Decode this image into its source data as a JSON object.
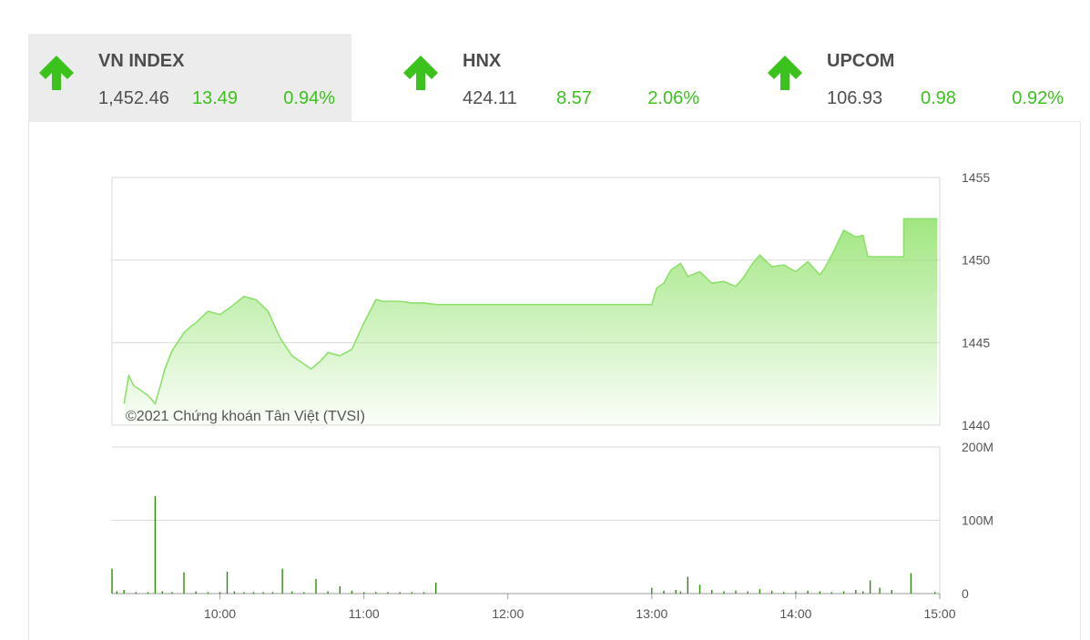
{
  "indices": [
    {
      "name": "VN INDEX",
      "value": "1,452.46",
      "change": "13.49",
      "percent": "0.94%",
      "direction": "up",
      "active": true
    },
    {
      "name": "HNX",
      "value": "424.11",
      "change": "8.57",
      "percent": "2.06%",
      "direction": "up",
      "active": false
    },
    {
      "name": "UPCOM",
      "value": "106.93",
      "change": "0.98",
      "percent": "0.92%",
      "direction": "up",
      "active": false
    }
  ],
  "colors": {
    "up": "#3cc21c",
    "line": "#8ee06c",
    "fill_top": "#9ce57a",
    "volume": "#2f8a10",
    "grid": "#d9d9d9"
  },
  "chart_data": [
    {
      "type": "area",
      "watermark": "©2021 Chứng khoán Tân Việt (TVSI)",
      "x_range": [
        "09:15",
        "15:00"
      ],
      "x_ticks": [
        "10:00",
        "11:00",
        "12:00",
        "13:00",
        "14:00",
        "15:00"
      ],
      "y_ticks": [
        "1440",
        "1445",
        "1450",
        "1455"
      ],
      "ylim": [
        1440,
        1455
      ],
      "grid": true,
      "series": [
        {
          "x": [
            "09:20",
            "09:22",
            "09:24",
            "09:27",
            "09:30",
            "09:33",
            "09:35",
            "09:37",
            "09:40",
            "09:45",
            "09:48",
            "09:50",
            "09:55",
            "10:00",
            "10:05",
            "10:10",
            "10:15",
            "10:20",
            "10:25",
            "10:30",
            "10:35",
            "10:38",
            "10:42",
            "10:45",
            "10:50",
            "10:55",
            "11:00",
            "11:05",
            "11:08",
            "11:12",
            "11:15",
            "11:20",
            "11:22",
            "11:25",
            "11:30",
            "11:32",
            "13:00",
            "13:02",
            "13:05",
            "13:08",
            "13:12",
            "13:15",
            "13:20",
            "13:25",
            "13:30",
            "13:35",
            "13:38",
            "13:42",
            "13:45",
            "13:50",
            "13:55",
            "14:00",
            "14:05",
            "14:10",
            "14:12",
            "14:15",
            "14:20",
            "14:25",
            "14:28",
            "14:30",
            "14:45",
            "14:45",
            "14:59"
          ],
          "values": [
            1441.3,
            1443.0,
            1442.4,
            1442.1,
            1441.8,
            1441.3,
            1442.3,
            1443.4,
            1444.5,
            1445.6,
            1446.0,
            1446.2,
            1446.9,
            1446.7,
            1447.2,
            1447.8,
            1447.6,
            1446.9,
            1445.3,
            1444.2,
            1443.7,
            1443.4,
            1443.9,
            1444.4,
            1444.2,
            1444.6,
            1446.2,
            1447.6,
            1447.5,
            1447.5,
            1447.5,
            1447.4,
            1447.4,
            1447.4,
            1447.3,
            1447.3,
            1447.3,
            1448.3,
            1448.6,
            1449.4,
            1449.8,
            1449.0,
            1449.3,
            1448.6,
            1448.7,
            1448.4,
            1448.9,
            1449.8,
            1450.3,
            1449.6,
            1449.7,
            1449.3,
            1449.9,
            1449.1,
            1449.5,
            1450.3,
            1451.8,
            1451.4,
            1451.5,
            1450.2,
            1450.2,
            1452.5,
            1452.5
          ]
        }
      ]
    },
    {
      "type": "bar",
      "y_ticks": [
        "0",
        "100M",
        "200M"
      ],
      "ylim": [
        0,
        200
      ],
      "grid": true,
      "x": [
        "09:15",
        "09:17",
        "09:20",
        "09:25",
        "09:30",
        "09:33",
        "09:36",
        "09:40",
        "09:45",
        "09:50",
        "09:55",
        "10:00",
        "10:03",
        "10:06",
        "10:10",
        "10:14",
        "10:18",
        "10:22",
        "10:26",
        "10:30",
        "10:35",
        "10:40",
        "10:45",
        "10:50",
        "10:55",
        "11:00",
        "11:05",
        "11:10",
        "11:15",
        "11:20",
        "11:25",
        "11:30",
        "13:00",
        "13:05",
        "13:10",
        "13:12",
        "13:15",
        "13:20",
        "13:25",
        "13:30",
        "13:35",
        "13:40",
        "13:45",
        "13:50",
        "13:55",
        "14:00",
        "14:05",
        "14:10",
        "14:15",
        "14:20",
        "14:25",
        "14:28",
        "14:31",
        "14:35",
        "14:40",
        "14:48",
        "14:58"
      ],
      "values": [
        34,
        3,
        5,
        2,
        2,
        133,
        3,
        2,
        29,
        3,
        2,
        2,
        30,
        3,
        2,
        2,
        2,
        2,
        34,
        3,
        2,
        20,
        3,
        10,
        4,
        2,
        2,
        2,
        2,
        2,
        2,
        15,
        8,
        4,
        5,
        3,
        23,
        12,
        5,
        3,
        4,
        3,
        6,
        4,
        2,
        3,
        4,
        3,
        2,
        3,
        5,
        3,
        18,
        8,
        5,
        28,
        2
      ]
    }
  ]
}
